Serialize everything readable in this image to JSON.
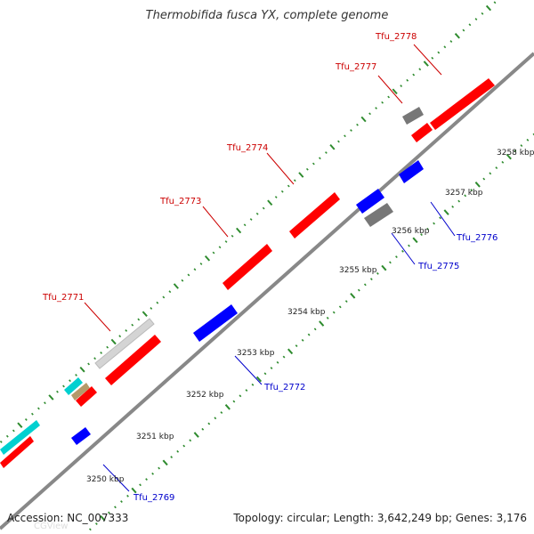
{
  "title": "Thermobifida fusca YX, complete genome",
  "accession": "Accession: NC_007333",
  "summary": "Topology: circular; Length: 3,642,249 bp; Genes: 3,176",
  "watermark": "CGView",
  "kbp_labels": [
    "3250 kbp",
    "3251 kbp",
    "3252 kbp",
    "3253 kbp",
    "3254 kbp",
    "3255 kbp",
    "3256 kbp",
    "3257 kbp",
    "3258 kbp"
  ],
  "genes_forward_labels": [
    "Tfu_2771",
    "Tfu_2773",
    "Tfu_2774",
    "Tfu_2777",
    "Tfu_2778"
  ],
  "genes_reverse_labels": [
    "Tfu_2769",
    "Tfu_2772",
    "Tfu_2775",
    "Tfu_2776"
  ],
  "colors": {
    "forward_cds": "#ff0000",
    "reverse_cds": "#0000ff",
    "rna": "#888888",
    "other": "#c8c8c8",
    "trna": "#00d0d0",
    "misc": "#b49a6a",
    "backbone": "#888888",
    "ticks": "#2e8b2e"
  }
}
